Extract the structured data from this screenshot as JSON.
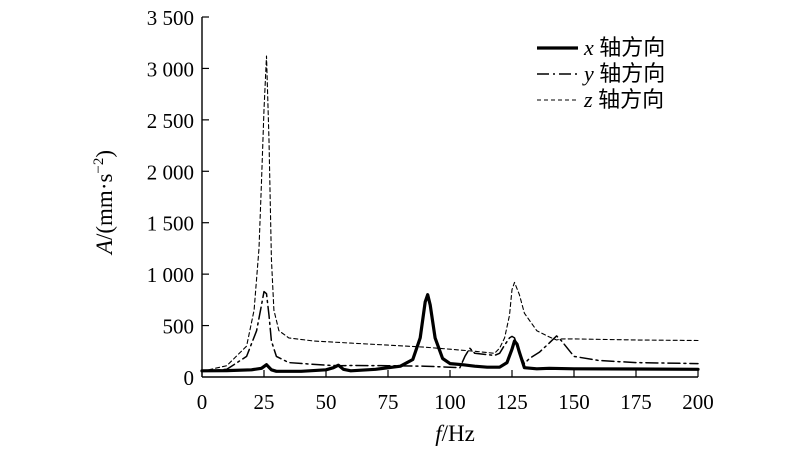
{
  "chart_data": {
    "type": "line",
    "title": "",
    "xlabel": {
      "var": "f",
      "unit": "/Hz"
    },
    "ylabel": {
      "var": "A",
      "unit": "/(mm·s",
      "sup": "−2",
      "close": ")"
    },
    "xlim": [
      0,
      200
    ],
    "ylim": [
      0,
      3500
    ],
    "xticks": [
      0,
      25,
      50,
      75,
      100,
      125,
      150,
      175,
      200
    ],
    "xtick_labels": [
      "0",
      "25",
      "50",
      "75",
      "100",
      "125",
      "150",
      "175",
      "200"
    ],
    "yticks": [
      500,
      1000,
      1500,
      2000,
      2500,
      3000,
      3500
    ],
    "ytick_labels": [
      "500",
      "1 000",
      "1 500",
      "2 000",
      "2 500",
      "3 000",
      "3 500"
    ],
    "ytick_zero_label": "0",
    "grid": false,
    "legend_position": "top-right",
    "series": [
      {
        "name": "x 轴方向",
        "name_var": "x",
        "name_text": " 轴方向",
        "style": "solid-thick",
        "color": "#000000",
        "x": [
          0,
          10,
          20,
          24,
          26,
          28,
          30,
          40,
          50,
          53,
          55,
          57,
          60,
          70,
          80,
          85,
          88,
          90,
          91,
          92,
          94,
          97,
          100,
          105,
          110,
          115,
          120,
          123,
          125,
          126,
          127,
          128,
          130,
          135,
          140,
          150,
          175,
          200
        ],
        "y": [
          60,
          62,
          70,
          85,
          120,
          70,
          55,
          55,
          70,
          90,
          115,
          75,
          60,
          75,
          105,
          170,
          380,
          730,
          800,
          700,
          380,
          180,
          130,
          120,
          105,
          95,
          95,
          140,
          270,
          350,
          320,
          240,
          90,
          80,
          85,
          80,
          78,
          75
        ]
      },
      {
        "name": "y 轴方向",
        "name_var": "y",
        "name_text": " 轴方向",
        "style": "dash-dot",
        "color": "#000000",
        "x": [
          0,
          10,
          18,
          22,
          24,
          25,
          26,
          27,
          28,
          30,
          35,
          50,
          55,
          60,
          75,
          90,
          100,
          104,
          106,
          108,
          110,
          118,
          120,
          122,
          124,
          125,
          126,
          128,
          130,
          132,
          136,
          140,
          143,
          145,
          150,
          160,
          175,
          200
        ],
        "y": [
          55,
          75,
          200,
          450,
          700,
          830,
          810,
          600,
          350,
          200,
          140,
          115,
          110,
          112,
          110,
          105,
          95,
          90,
          200,
          280,
          230,
          210,
          230,
          310,
          380,
          395,
          380,
          240,
          130,
          180,
          240,
          330,
          400,
          350,
          200,
          160,
          140,
          130
        ]
      },
      {
        "name": "z 轴方向",
        "name_var": "z",
        "name_text": " 轴方向",
        "style": "dashed",
        "color": "#000000",
        "x": [
          0,
          10,
          18,
          21,
          23,
          24,
          25,
          26,
          27,
          28,
          29,
          31,
          35,
          45,
          60,
          75,
          90,
          100,
          110,
          118,
          120,
          122,
          124,
          125,
          126,
          128,
          130,
          135,
          140,
          143,
          145,
          150,
          175,
          200
        ],
        "y": [
          55,
          110,
          300,
          650,
          1250,
          1900,
          2600,
          3120,
          2300,
          1150,
          650,
          450,
          380,
          350,
          330,
          310,
          290,
          270,
          250,
          230,
          280,
          380,
          600,
          850,
          920,
          800,
          620,
          450,
          390,
          360,
          370,
          370,
          360,
          355
        ]
      }
    ]
  }
}
